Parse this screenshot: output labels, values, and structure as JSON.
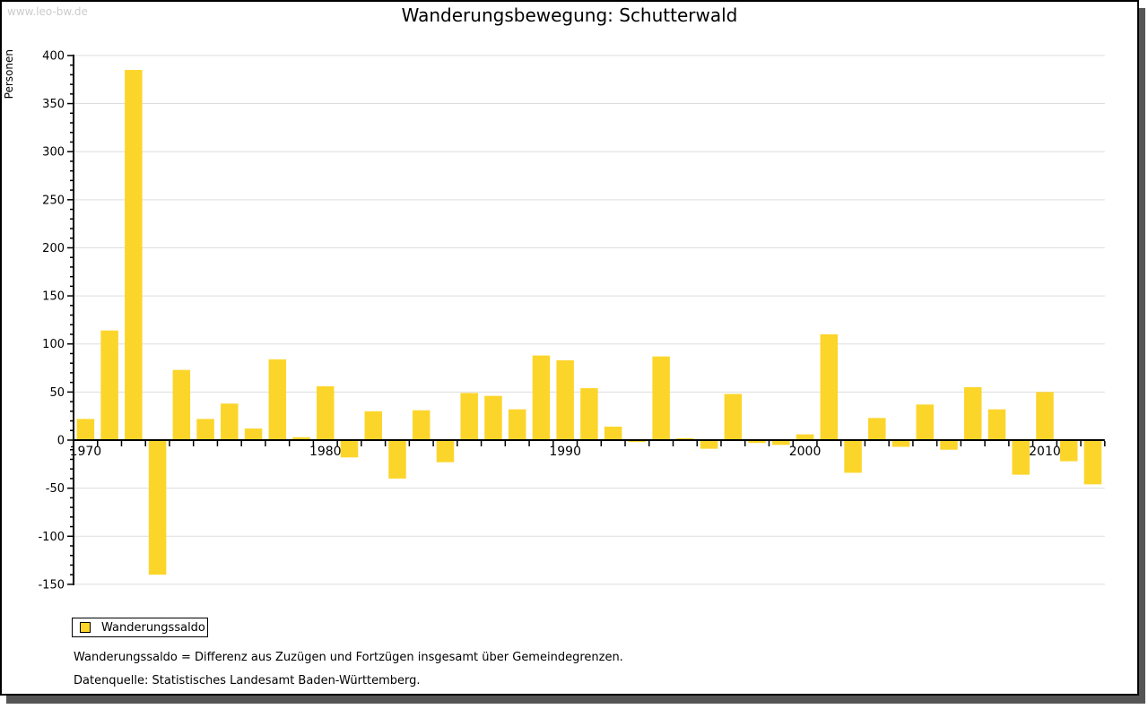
{
  "page": {
    "watermark": "www.leo-bw.de",
    "title": "Wanderungsbewegung: Schutterwald"
  },
  "colors": {
    "bar": "#FCD52B",
    "grid": "#DDDDDD",
    "axis": "#000000",
    "shadow": "#555555",
    "watermark": "#CCCCCC"
  },
  "legend": {
    "label": "Wanderungssaldo"
  },
  "footnotes": [
    "Wanderungssaldo = Differenz aus Zuzügen und Fortzügen insgesamt über Gemeindegrenzen.",
    "Datenquelle: Statistisches Landesamt Baden-Württemberg."
  ],
  "chart_data": {
    "type": "bar",
    "title": "Wanderungsbewegung: Schutterwald",
    "ylabel": "Personen",
    "series_name": "Wanderungssaldo",
    "x": [
      1970,
      1971,
      1972,
      1973,
      1974,
      1975,
      1976,
      1977,
      1978,
      1979,
      1980,
      1981,
      1982,
      1983,
      1984,
      1985,
      1986,
      1987,
      1988,
      1989,
      1990,
      1991,
      1992,
      1993,
      1994,
      1995,
      1996,
      1997,
      1998,
      1999,
      2000,
      2001,
      2002,
      2003,
      2004,
      2005,
      2006,
      2007,
      2008,
      2009,
      2010,
      2011,
      2012
    ],
    "values": [
      22,
      114,
      385,
      -140,
      73,
      22,
      38,
      12,
      84,
      3,
      56,
      -18,
      30,
      -40,
      31,
      -23,
      49,
      46,
      32,
      88,
      83,
      54,
      14,
      -2,
      87,
      2,
      -9,
      48,
      -3,
      -5,
      6,
      110,
      -34,
      23,
      -7,
      37,
      -10,
      55,
      32,
      -36,
      50,
      -22,
      -46
    ],
    "ylim": [
      -150,
      400
    ],
    "ytick_step": 50,
    "ytick_minor_step": 10,
    "xtick_labels": [
      1970,
      1980,
      1990,
      2000,
      2010
    ],
    "grid": true,
    "legend_position": "bottom-left",
    "bar_color": "#FCD52B"
  }
}
